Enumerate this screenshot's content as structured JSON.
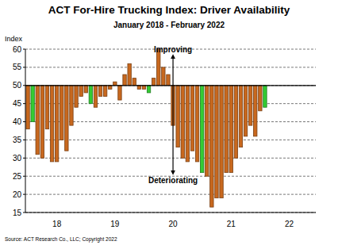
{
  "chart_data": {
    "type": "bar",
    "title": "ACT For-Hire Trucking Index: Driver Availability",
    "subtitle": "January 2018 - February 2022",
    "y_label": "Index",
    "source": "Source: ACT Research Co., LLC; Copyright 2022",
    "categories": [
      null,
      null,
      null,
      null,
      null,
      null,
      "18",
      null,
      null,
      null,
      null,
      null,
      null,
      null,
      null,
      null,
      null,
      null,
      "19",
      null,
      null,
      null,
      null,
      null,
      null,
      null,
      null,
      null,
      null,
      null,
      "20",
      null,
      null,
      null,
      null,
      null,
      null,
      null,
      null,
      null,
      null,
      null,
      "21",
      null,
      null,
      null,
      null,
      null,
      null,
      null,
      null,
      null,
      null,
      null,
      "22",
      null,
      null,
      null,
      null,
      null
    ],
    "values": [
      38,
      40,
      31,
      30,
      38,
      29,
      29,
      35,
      32,
      39,
      44,
      47,
      48,
      45,
      44,
      47,
      47,
      49,
      51,
      46,
      53,
      56,
      52,
      49,
      49,
      48,
      52,
      60,
      55,
      53,
      39,
      33,
      30,
      29,
      32,
      29,
      26,
      25,
      16.5,
      19,
      19,
      26,
      26,
      30,
      33,
      36,
      39,
      36,
      43,
      44,
      null,
      null,
      null,
      null,
      null,
      null,
      null,
      null,
      null,
      null
    ],
    "colors": [
      "#c8681e",
      "#33cc33",
      "#c8681e",
      "#c8681e",
      "#c8681e",
      "#c8681e",
      "#c8681e",
      "#c8681e",
      "#c8681e",
      "#c8681e",
      "#c8681e",
      "#c8681e",
      "#c8681e",
      "#33cc33",
      "#c8681e",
      "#c8681e",
      "#c8681e",
      "#c8681e",
      "#c8681e",
      "#c8681e",
      "#c8681e",
      "#c8681e",
      "#c8681e",
      "#c8681e",
      "#c8681e",
      "#33cc33",
      "#c8681e",
      "#c8681e",
      "#c8681e",
      "#c8681e",
      "#c8681e",
      "#c8681e",
      "#c8681e",
      "#c8681e",
      "#c8681e",
      "#c8681e",
      "#33cc33",
      "#c8681e",
      "#c8681e",
      "#c8681e",
      "#c8681e",
      "#c8681e",
      "#c8681e",
      "#c8681e",
      "#c8681e",
      "#c8681e",
      "#c8681e",
      "#c8681e",
      "#c8681e",
      "#33cc33",
      null,
      null,
      null,
      null,
      null,
      null,
      null,
      null,
      null,
      null
    ],
    "baseline": 50,
    "ylim": [
      15,
      60
    ],
    "yticks": [
      15,
      20,
      25,
      30,
      35,
      40,
      45,
      50,
      55,
      60
    ],
    "grid": true,
    "annotations": [
      {
        "text": "Improving",
        "x": 30,
        "value": 58
      },
      {
        "text": "Deteriorating",
        "x": 30,
        "value": 26
      }
    ]
  }
}
